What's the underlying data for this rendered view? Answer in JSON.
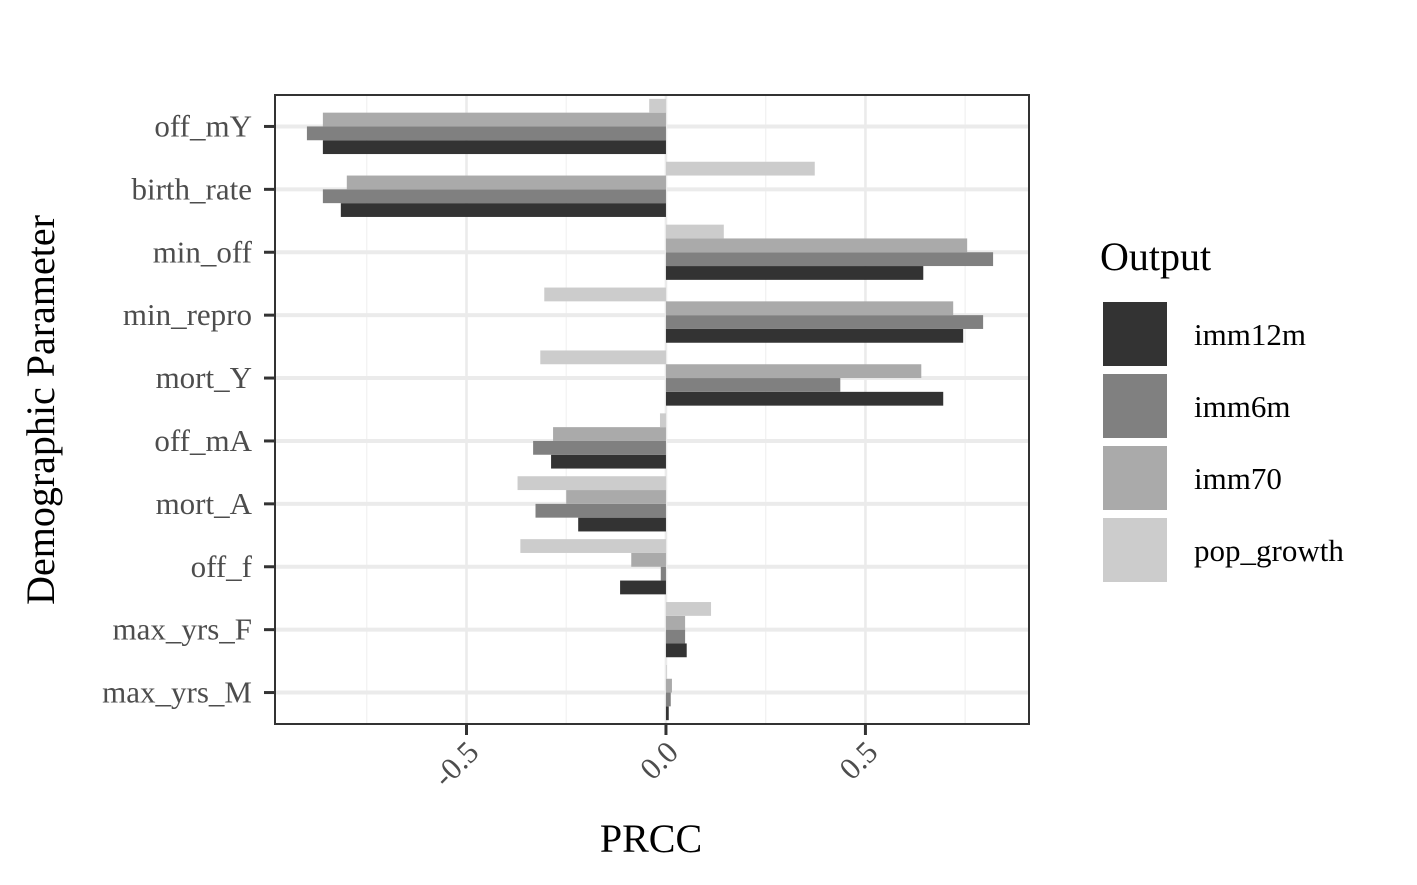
{
  "chart_data": {
    "type": "bar",
    "orientation": "horizontal",
    "xlabel": "PRCC",
    "ylabel": "Demographic Parameter",
    "xlim": [
      -0.98,
      0.91
    ],
    "x_ticks": [
      -0.5,
      0.0,
      0.5
    ],
    "x_tick_labels": [
      "-0.5",
      "0.0",
      "0.5"
    ],
    "grid": true,
    "legend": {
      "title": "Output",
      "position": "right"
    },
    "categories": [
      "off_mY",
      "birth_rate",
      "min_off",
      "min_repro",
      "mort_Y",
      "off_mA",
      "mort_A",
      "off_f",
      "max_yrs_F",
      "max_yrs_M"
    ],
    "series": [
      {
        "name": "imm12m",
        "color": "#333333",
        "values": [
          -0.86,
          -0.815,
          0.645,
          0.745,
          0.695,
          -0.288,
          -0.22,
          -0.115,
          0.052,
          0.007
        ]
      },
      {
        "name": "imm6m",
        "color": "#808080",
        "values": [
          -0.9,
          -0.86,
          0.82,
          0.795,
          0.437,
          -0.333,
          -0.327,
          -0.013,
          0.048,
          0.012
        ]
      },
      {
        "name": "imm70",
        "color": "#aaaaaa",
        "values": [
          -0.86,
          -0.8,
          0.755,
          0.72,
          0.64,
          -0.283,
          -0.25,
          -0.087,
          0.048,
          0.015
        ]
      },
      {
        "name": "pop_growth",
        "color": "#cccccc",
        "values": [
          -0.042,
          0.373,
          0.145,
          -0.305,
          -0.315,
          -0.015,
          -0.372,
          -0.365,
          0.113,
          0.002
        ]
      }
    ]
  }
}
